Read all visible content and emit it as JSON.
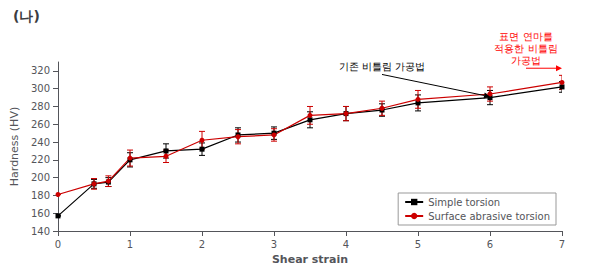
{
  "chart_data": {
    "type": "line",
    "title": "(나)",
    "xlabel": "Shear strain",
    "ylabel": "Hardness (HV)",
    "x": [
      0,
      0.5,
      0.7,
      1.0,
      1.5,
      2.0,
      2.5,
      3.0,
      3.5,
      4.0,
      4.5,
      5.0,
      6.0,
      7.0
    ],
    "series": [
      {
        "name": "Simple torsion",
        "color": "#000000",
        "marker": "square",
        "line_style": "solid",
        "values": [
          157,
          193,
          195,
          220,
          230,
          232,
          248,
          250,
          265,
          272,
          276,
          284,
          290,
          302
        ],
        "yerr": [
          0,
          5,
          5,
          8,
          8,
          7,
          8,
          7,
          9,
          8,
          7,
          9,
          8,
          6
        ]
      },
      {
        "name": "Surface abrasive torsion",
        "color": "#cc0000",
        "marker": "circle",
        "line_style": "solid",
        "values": [
          181,
          193,
          196,
          222,
          224,
          242,
          246,
          248,
          270,
          272,
          278,
          288,
          294,
          307
        ],
        "yerr": [
          0,
          6,
          6,
          9,
          7,
          10,
          8,
          7,
          10,
          8,
          8,
          10,
          8,
          8
        ]
      }
    ],
    "xlim": [
      0,
      7
    ],
    "ylim": [
      140,
      330
    ],
    "xticks": [
      0,
      1,
      2,
      3,
      4,
      5,
      6,
      7
    ],
    "yticks": [
      140,
      160,
      180,
      200,
      220,
      240,
      260,
      280,
      300,
      320
    ],
    "grid": false,
    "legend": "lower right",
    "annotations": [
      {
        "text": "기존 비틀림 가공법",
        "xy": [
          6.0,
          291
        ],
        "xytext": [
          4.5,
          316
        ],
        "color": "#000000"
      },
      {
        "text": "표면 연마를\n적용한 비틀림\n가공법",
        "xy": [
          7.0,
          323
        ],
        "xytext": [
          6.5,
          323
        ],
        "color": "red"
      }
    ]
  }
}
